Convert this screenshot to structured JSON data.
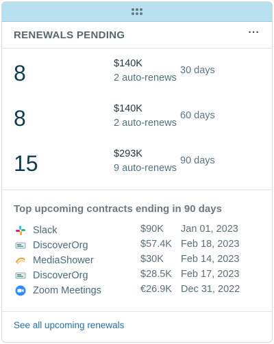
{
  "header": {
    "title": "RENEWALS PENDING",
    "more_label": "···"
  },
  "renewals": [
    {
      "count": "8",
      "amount": "$140K",
      "auto_renews": "2 auto-renews",
      "window": "30 days"
    },
    {
      "count": "8",
      "amount": "$140K",
      "auto_renews": "2 auto-renews",
      "window": "60 days"
    },
    {
      "count": "15",
      "amount": "$293K",
      "auto_renews": "9 auto-renews",
      "window": "90 days"
    }
  ],
  "top_contracts": {
    "title": "Top upcoming contracts ending in 90 days",
    "items": [
      {
        "name": "Slack",
        "value": "$90K",
        "date": "Jan 01, 2023",
        "icon": "slack-icon"
      },
      {
        "name": "DiscoverOrg",
        "value": "$57.4K",
        "date": "Feb 18, 2023",
        "icon": "discoverorg-icon"
      },
      {
        "name": "MediaShower",
        "value": "$30K",
        "date": "Feb 14, 2023",
        "icon": "mediashower-icon"
      },
      {
        "name": "DiscoverOrg",
        "value": "$28.5K",
        "date": "Feb 17, 2023",
        "icon": "discoverorg-icon"
      },
      {
        "name": "Zoom Meetings",
        "value": "€26.9K",
        "date": "Dec 31, 2022",
        "icon": "zoom-icon"
      }
    ]
  },
  "footer": {
    "link_label": "See all upcoming renewals"
  },
  "colors": {
    "handle_bar": "#b8e0ee",
    "count": "#103a4d",
    "link": "#2a6fa3"
  }
}
